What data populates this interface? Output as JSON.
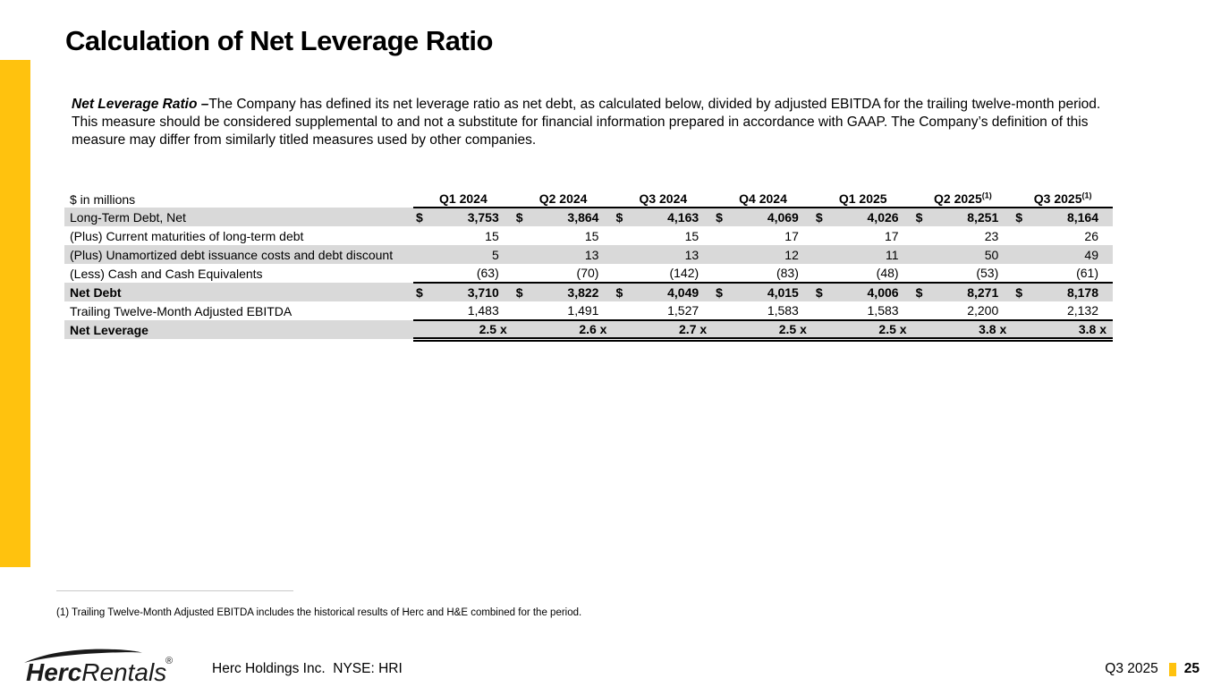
{
  "slide": {
    "title": "Calculation of Net Leverage Ratio",
    "accent_color": "#FFC20E"
  },
  "intro": {
    "lead": "Net Leverage Ratio –",
    "body": "The Company has defined its net leverage ratio as net debt, as calculated below, divided by adjusted EBITDA for the trailing twelve-month period.  This measure should be considered supplemental to and not a substitute for financial information prepared in accordance with GAAP. The Company’s definition of this measure may differ from similarly titled measures used by other companies."
  },
  "table": {
    "unit_label": "$ in millions",
    "columns": [
      {
        "label": "Q1 2024",
        "superscript": ""
      },
      {
        "label": "Q2 2024",
        "superscript": ""
      },
      {
        "label": "Q3 2024",
        "superscript": ""
      },
      {
        "label": "Q4 2024",
        "superscript": ""
      },
      {
        "label": "Q1 2025",
        "superscript": ""
      },
      {
        "label": "Q2 2025",
        "superscript": "(1)"
      },
      {
        "label": "Q3 2025",
        "superscript": "(1)"
      }
    ],
    "rows": [
      {
        "label": "Long-Term Debt, Net",
        "dollar": true,
        "shaded": true,
        "bold_values": true,
        "values": [
          "3,753",
          "3,864",
          "4,163",
          "4,069",
          "4,026",
          "8,251",
          "8,164"
        ]
      },
      {
        "label": "(Plus) Current maturities of long-term debt",
        "values": [
          "15",
          "15",
          "15",
          "17",
          "17",
          "23",
          "26"
        ]
      },
      {
        "label": "(Plus) Unamortized debt issuance costs and debt discount",
        "shaded": true,
        "values": [
          "5",
          "13",
          "13",
          "12",
          "11",
          "50",
          "49"
        ]
      },
      {
        "label": "(Less) Cash and Cash Equivalents",
        "rule_bottom": true,
        "values": [
          "(63)",
          "(70)",
          "(142)",
          "(83)",
          "(48)",
          "(53)",
          "(61)"
        ]
      },
      {
        "label": "Net Debt",
        "dollar": true,
        "shaded": true,
        "bold_row": true,
        "values": [
          "3,710",
          "3,822",
          "4,049",
          "4,015",
          "4,006",
          "8,271",
          "8,178"
        ]
      },
      {
        "label": "Trailing Twelve-Month Adjusted EBITDA",
        "rule_bottom": true,
        "values": [
          "1,483",
          "1,491",
          "1,527",
          "1,583",
          "1,583",
          "2,200",
          "2,132"
        ]
      },
      {
        "label": "Net Leverage",
        "shaded": true,
        "bold_row": true,
        "double_bottom": true,
        "values": [
          "2.5 x",
          "2.6 x",
          "2.7 x",
          "2.5 x",
          "2.5 x",
          "3.8 x",
          "3.8 x"
        ]
      }
    ]
  },
  "footnote": "(1) Trailing Twelve-Month Adjusted EBITDA includes the historical results of Herc and H&E combined for the period.",
  "footer": {
    "logo_bold": "Herc",
    "logo_light": "Rentals",
    "logo_reg": "®",
    "company": "Herc Holdings Inc.  NYSE: HRI",
    "period": "Q3 2025",
    "page": "25"
  }
}
